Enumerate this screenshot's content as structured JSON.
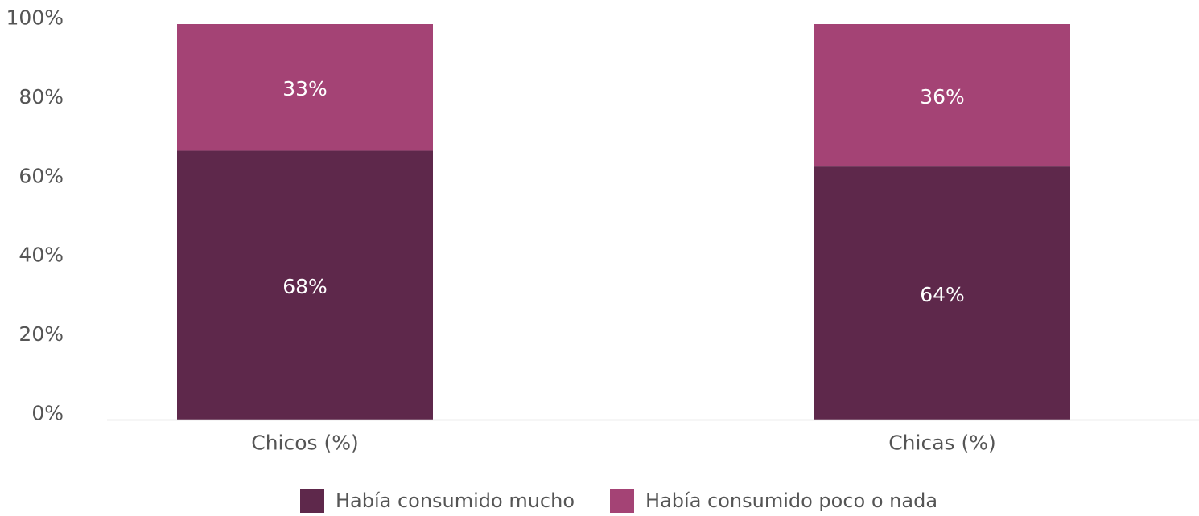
{
  "chart_data": {
    "type": "bar",
    "stacked": true,
    "categories": [
      "Chicos (%)",
      "Chicas (%)"
    ],
    "series": [
      {
        "name": "Había consumido mucho",
        "values": [
          68,
          64
        ],
        "labels": [
          "68%",
          "64%"
        ],
        "color": "#5e284b"
      },
      {
        "name": "Había consumido poco o nada",
        "values": [
          33,
          36
        ],
        "labels": [
          "33%",
          "36%"
        ],
        "color": "#a44375"
      }
    ],
    "yticks": [
      "0%",
      "20%",
      "40%",
      "60%",
      "80%",
      "100%"
    ],
    "ylim": [
      0,
      100
    ],
    "grid": false,
    "legend_position": "bottom",
    "axis_color": "#dddddd",
    "title": "",
    "xlabel": "",
    "ylabel": ""
  }
}
